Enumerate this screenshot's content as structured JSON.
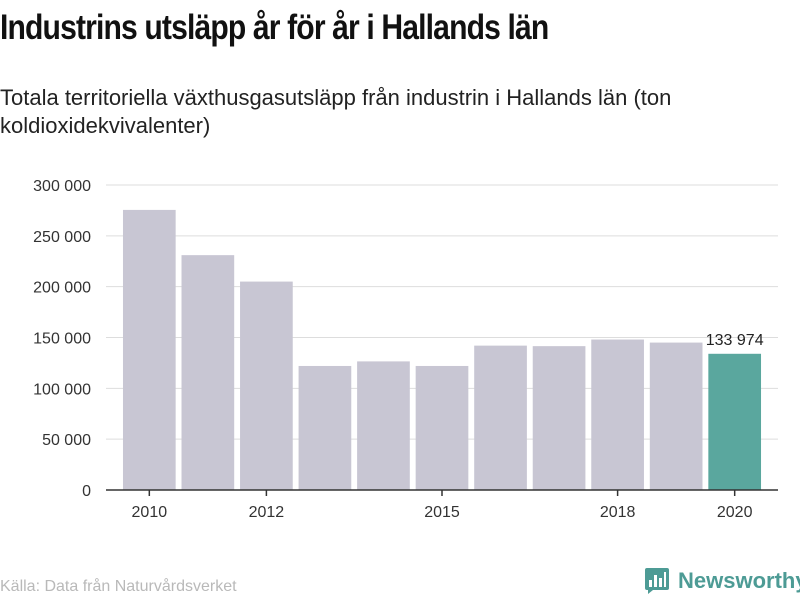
{
  "header": {
    "title": "Industrins utsläpp år för år i Hallands län",
    "subtitle": "Totala territoriella växthusgasutsläpp från industrin i Hallands län (ton koldioxidekvivalenter)"
  },
  "footer": {
    "source": "Källa: Data från Naturvårdsverket",
    "brand": "Newsworthy",
    "brand_icon": "newsworthy-logo-icon"
  },
  "colors": {
    "bar": "#c8c6d3",
    "highlight": "#5aa79e",
    "grid": "#dddddd",
    "axis": "#333333"
  },
  "chart_data": {
    "type": "bar",
    "categories": [
      2010,
      2011,
      2012,
      2013,
      2014,
      2015,
      2016,
      2017,
      2018,
      2019,
      2020
    ],
    "values": [
      275500,
      231000,
      205000,
      122000,
      126500,
      122000,
      142000,
      141500,
      148000,
      145000,
      133974
    ],
    "highlight_index": 10,
    "data_labels": [
      {
        "index": 10,
        "text": "133 974"
      }
    ],
    "x_ticks": [
      "2010",
      "2012",
      "2015",
      "2018",
      "2020"
    ],
    "y_ticks": [
      {
        "value": 0,
        "label": "0"
      },
      {
        "value": 50000,
        "label": "50 000"
      },
      {
        "value": 100000,
        "label": "100 000"
      },
      {
        "value": 150000,
        "label": "150 000"
      },
      {
        "value": 200000,
        "label": "200 000"
      },
      {
        "value": 250000,
        "label": "250 000"
      },
      {
        "value": 300000,
        "label": "300 000"
      }
    ],
    "ylim": [
      0,
      300000
    ],
    "grid": true,
    "legend": "none",
    "title": "Industrins utsläpp år för år i Hallands län",
    "xlabel": "",
    "ylabel": ""
  }
}
